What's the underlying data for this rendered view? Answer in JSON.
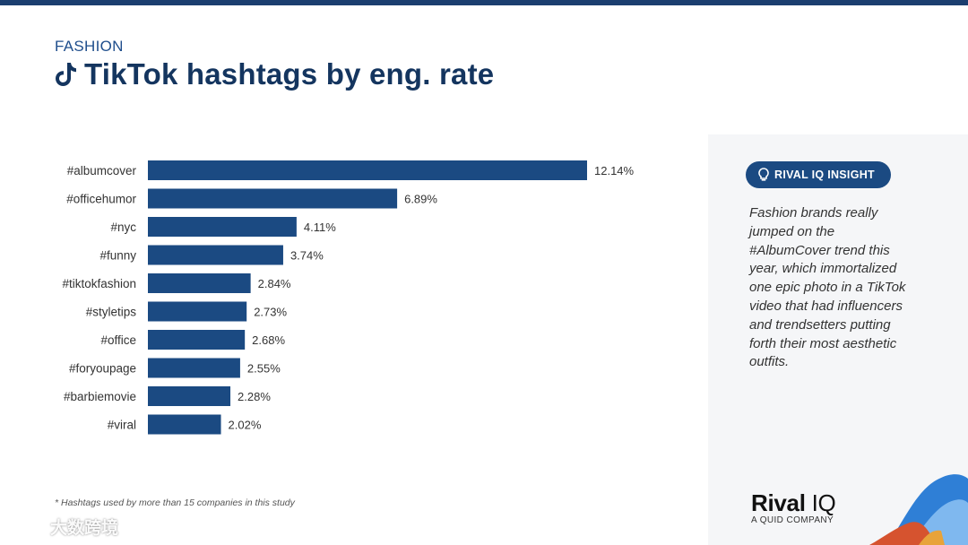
{
  "header": {
    "eyebrow": "FASHION",
    "title": "TikTok hashtags by eng. rate"
  },
  "chart_data": {
    "type": "bar",
    "orientation": "horizontal",
    "title": "TikTok hashtags by eng. rate",
    "categories": [
      "#albumcover",
      "#officehumor",
      "#nyc",
      "#funny",
      "#tiktokfashion",
      "#styletips",
      "#office",
      "#foryoupage",
      "#barbiemovie",
      "#viral"
    ],
    "values": [
      12.14,
      6.89,
      4.11,
      3.74,
      2.84,
      2.73,
      2.68,
      2.55,
      2.28,
      2.02
    ],
    "value_labels": [
      "12.14%",
      "6.89%",
      "4.11%",
      "3.74%",
      "2.84%",
      "2.73%",
      "2.68%",
      "2.55%",
      "2.28%",
      "2.02%"
    ],
    "xlabel": "",
    "ylabel": "",
    "xlim": [
      0,
      12.14
    ],
    "grid": false,
    "bar_color": "#1b4a82"
  },
  "footnote": "* Hashtags used by more than 15 companies in this study",
  "insight": {
    "label": "RIVAL IQ INSIGHT",
    "text": "Fashion brands really jumped on the #AlbumCover trend this year, which immortalized one epic photo in a TikTok video that had influencers and trendsetters putting forth their most aesthetic outfits."
  },
  "brand": {
    "name_bold": "Rival",
    "name_light": "IQ",
    "tagline": "A QUID COMPANY"
  },
  "watermark": {
    "text": "大数跨境"
  },
  "colors": {
    "primary": "#1b4a82",
    "title": "#14355f",
    "panel": "#f5f6f8"
  }
}
